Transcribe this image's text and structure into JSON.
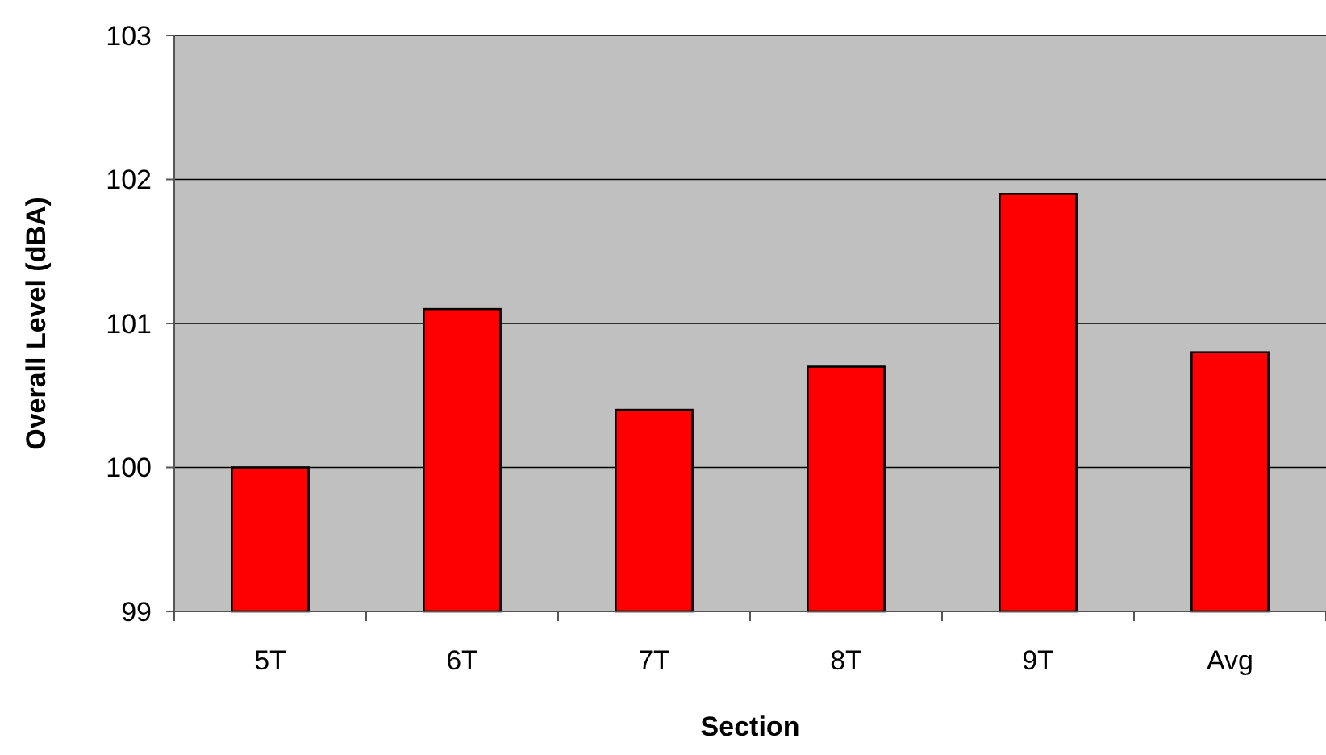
{
  "chart_data": {
    "type": "bar",
    "xlabel": "Section",
    "ylabel": "Overall Level (dBA)",
    "categories": [
      "5T",
      "6T",
      "7T",
      "8T",
      "9T",
      "Avg"
    ],
    "values": [
      100.0,
      101.1,
      100.4,
      100.7,
      101.9,
      100.8
    ],
    "color": "#ff0000",
    "ylim": [
      99,
      103
    ],
    "yticks": [
      99,
      100,
      101,
      102,
      103
    ],
    "grid": "y"
  }
}
